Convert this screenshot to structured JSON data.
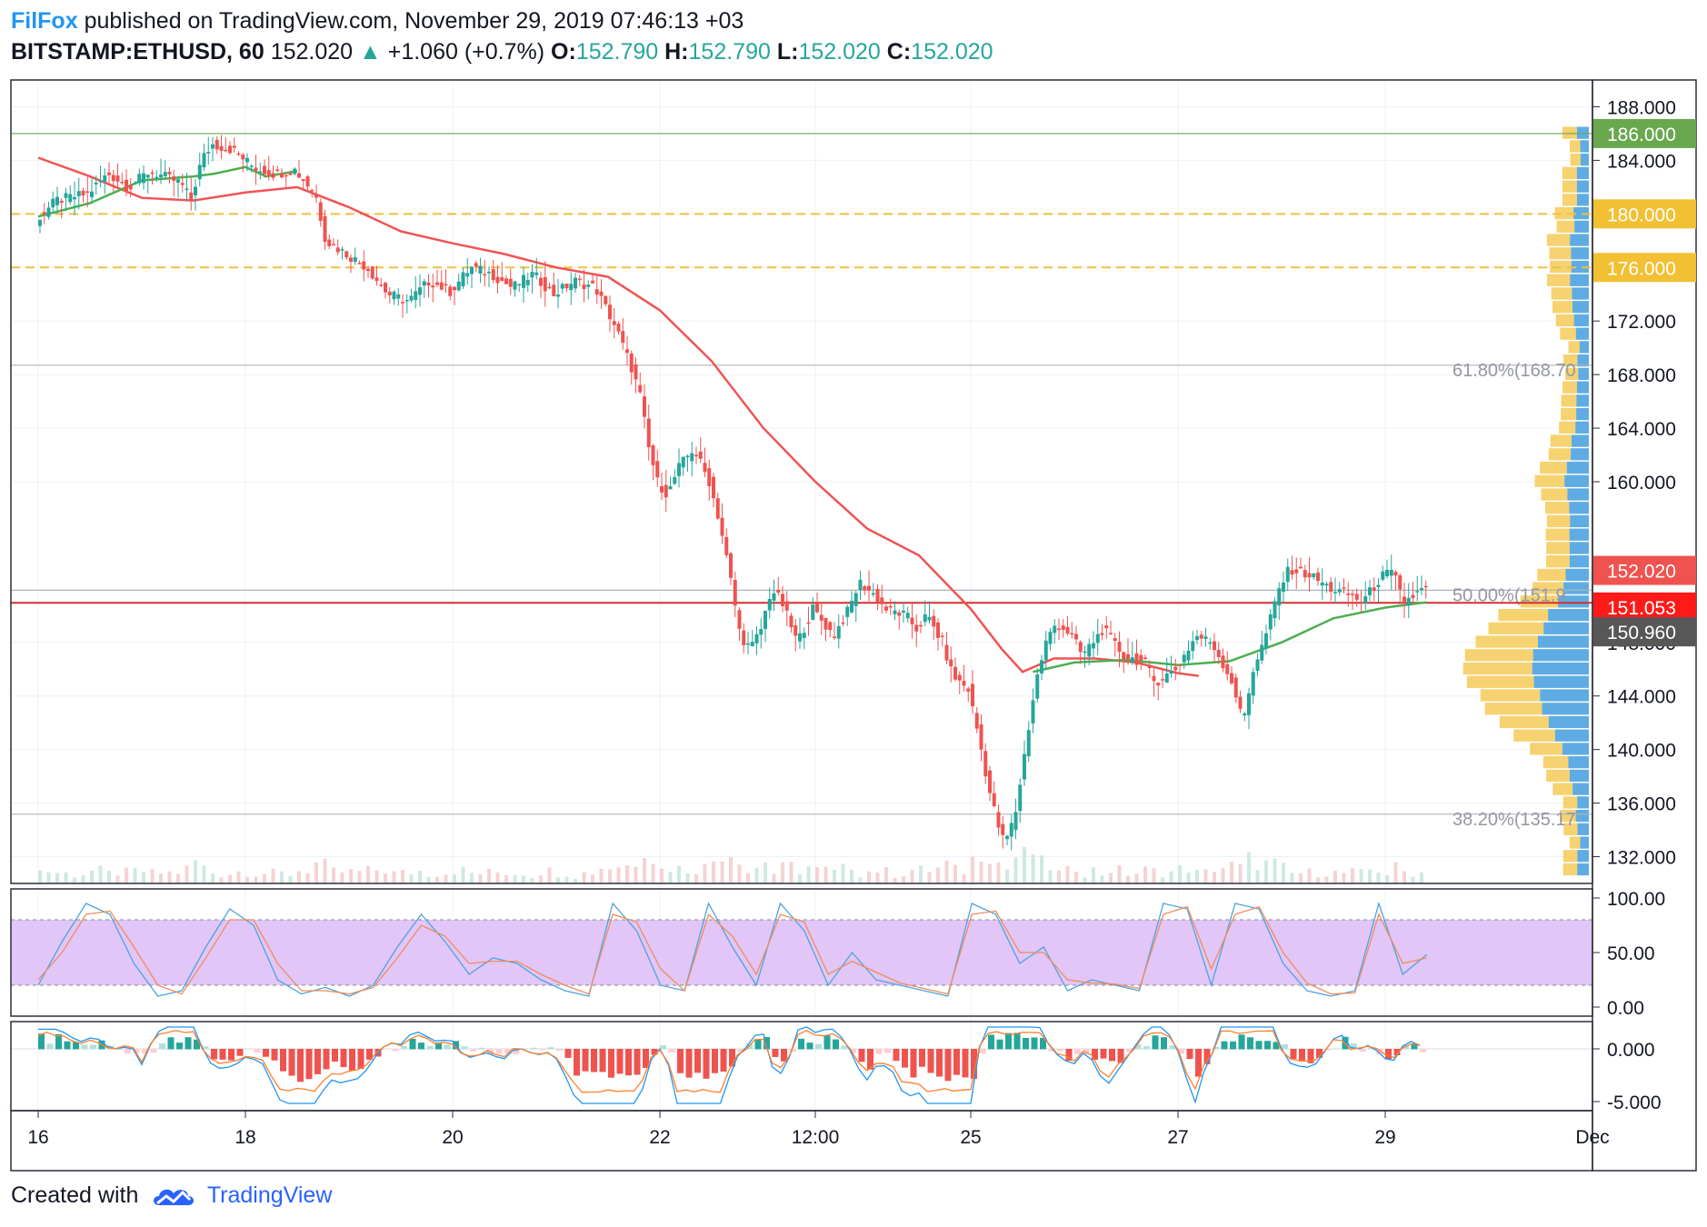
{
  "header": {
    "author": "FilFox",
    "published_text": "published on TradingView.com, November 29, 2019 07:46:13 +03",
    "symbol": "BITSTAMP:ETHUSD, 60",
    "last": "152.020",
    "change_arrow": "▲",
    "change": "+1.060 (+0.7%)",
    "o_label": "O:",
    "o": "152.790",
    "h_label": "H:",
    "h": "152.790",
    "l_label": "L:",
    "l": "152.020",
    "c_label": "C:",
    "c": "152.020"
  },
  "footer": {
    "created_with": "Created with",
    "brand": "TradingView",
    "brand_icon": "tradingview-cloud-icon"
  },
  "colors": {
    "up": "#26a69a",
    "down": "#ef5350",
    "ma_red": "#f05454",
    "ma_green": "#4caf50",
    "level_yellow": "#f0c040",
    "level_green": "#6aa84f",
    "stoch_band": "#e1c6f7",
    "volume_profile_up": "#4da3e0",
    "volume_profile_down": "#f5cd60"
  },
  "chart_data": {
    "type": "candlestick",
    "price_axis": {
      "ylim": [
        130,
        190
      ],
      "ticks": [
        "188.000",
        "184.000",
        "180.000",
        "176.000",
        "172.000",
        "168.000",
        "164.000",
        "160.000",
        "148.000",
        "144.000",
        "140.000",
        "136.000",
        "132.000"
      ],
      "tick_values": [
        188,
        184,
        180,
        176,
        172,
        168,
        164,
        160,
        148,
        144,
        140,
        136,
        132
      ]
    },
    "time_axis": {
      "labels": [
        "16",
        "18",
        "20",
        "22",
        "12:00",
        "25",
        "27",
        "29",
        "Dec"
      ],
      "label_index": [
        0,
        2,
        4,
        6,
        7.5,
        9,
        11,
        13,
        15
      ]
    },
    "price_path": [
      [
        0,
        179.5
      ],
      [
        0.2,
        181.0
      ],
      [
        0.5,
        181.5
      ],
      [
        0.7,
        183.0
      ],
      [
        0.9,
        182.0
      ],
      [
        1.1,
        183.2
      ],
      [
        1.4,
        182.3
      ],
      [
        1.5,
        181.0
      ],
      [
        1.6,
        184.0
      ],
      [
        1.7,
        185.2
      ],
      [
        1.9,
        184.8
      ],
      [
        2.1,
        183.5
      ],
      [
        2.3,
        183.0
      ],
      [
        2.5,
        183.3
      ],
      [
        2.7,
        181.5
      ],
      [
        2.8,
        178.0
      ],
      [
        3.0,
        177.0
      ],
      [
        3.2,
        176.0
      ],
      [
        3.4,
        174.0
      ],
      [
        3.6,
        173.5
      ],
      [
        3.8,
        175.0
      ],
      [
        4.0,
        174.2
      ],
      [
        4.2,
        176.0
      ],
      [
        4.4,
        175.5
      ],
      [
        4.6,
        174.5
      ],
      [
        4.8,
        175.5
      ],
      [
        5.0,
        174.0
      ],
      [
        5.2,
        175.0
      ],
      [
        5.4,
        174.5
      ],
      [
        5.6,
        171.5
      ],
      [
        5.75,
        168.5
      ],
      [
        5.85,
        166.0
      ],
      [
        5.9,
        163.0
      ],
      [
        6.0,
        160.0
      ],
      [
        6.1,
        159.0
      ],
      [
        6.2,
        161.0
      ],
      [
        6.35,
        162.5
      ],
      [
        6.5,
        160.0
      ],
      [
        6.6,
        157.0
      ],
      [
        6.7,
        153.0
      ],
      [
        6.8,
        148.5
      ],
      [
        6.9,
        147.5
      ],
      [
        7.0,
        149.0
      ],
      [
        7.1,
        152.0
      ],
      [
        7.2,
        151.0
      ],
      [
        7.35,
        148.0
      ],
      [
        7.5,
        150.5
      ],
      [
        7.6,
        149.5
      ],
      [
        7.7,
        148.5
      ],
      [
        7.85,
        150.5
      ],
      [
        7.95,
        152.5
      ],
      [
        8.1,
        151.5
      ],
      [
        8.2,
        150.5
      ],
      [
        8.4,
        150.0
      ],
      [
        8.5,
        149.0
      ],
      [
        8.6,
        150.0
      ],
      [
        8.75,
        148.0
      ],
      [
        8.85,
        145.5
      ],
      [
        9.0,
        144.5
      ],
      [
        9.1,
        141.0
      ],
      [
        9.2,
        137.0
      ],
      [
        9.3,
        134.0
      ],
      [
        9.35,
        133.0
      ],
      [
        9.45,
        135.0
      ],
      [
        9.55,
        140.0
      ],
      [
        9.65,
        145.0
      ],
      [
        9.75,
        148.0
      ],
      [
        9.85,
        149.5
      ],
      [
        10.0,
        148.5
      ],
      [
        10.1,
        147.0
      ],
      [
        10.3,
        149.0
      ],
      [
        10.5,
        147.0
      ],
      [
        10.7,
        146.5
      ],
      [
        10.8,
        145.0
      ],
      [
        11.0,
        146.0
      ],
      [
        11.2,
        148.5
      ],
      [
        11.35,
        148.0
      ],
      [
        11.45,
        146.5
      ],
      [
        11.55,
        145.0
      ],
      [
        11.65,
        142.0
      ],
      [
        11.75,
        146.0
      ],
      [
        11.85,
        148.0
      ],
      [
        12.0,
        152.0
      ],
      [
        12.1,
        153.5
      ],
      [
        12.3,
        153.0
      ],
      [
        12.5,
        152.0
      ],
      [
        12.7,
        151.5
      ],
      [
        12.8,
        151.0
      ],
      [
        13.0,
        153.0
      ],
      [
        13.1,
        153.2
      ],
      [
        13.2,
        151.0
      ],
      [
        13.3,
        151.5
      ],
      [
        13.4,
        152.0
      ]
    ],
    "ma_red": [
      [
        0,
        184.2
      ],
      [
        0.5,
        182.8
      ],
      [
        1.0,
        181.2
      ],
      [
        1.5,
        181.0
      ],
      [
        2.0,
        181.6
      ],
      [
        2.5,
        182.0
      ],
      [
        3.0,
        180.5
      ],
      [
        3.5,
        178.7
      ],
      [
        4.0,
        177.8
      ],
      [
        4.5,
        177.0
      ],
      [
        5.0,
        176.0
      ],
      [
        5.5,
        175.3
      ],
      [
        6.0,
        172.8
      ],
      [
        6.5,
        169.0
      ],
      [
        7.0,
        164.0
      ],
      [
        7.5,
        160.0
      ],
      [
        8.0,
        156.5
      ],
      [
        8.5,
        154.5
      ],
      [
        9.0,
        150.5
      ],
      [
        9.3,
        147.5
      ],
      [
        9.5,
        145.8
      ],
      [
        9.8,
        146.8
      ],
      [
        10.2,
        146.8
      ],
      [
        10.6,
        146.5
      ],
      [
        11.0,
        145.7
      ],
      [
        11.2,
        145.5
      ]
    ],
    "ma_green": [
      [
        0,
        179.8
      ],
      [
        0.5,
        180.8
      ],
      [
        1.0,
        182.5
      ],
      [
        1.5,
        182.8
      ],
      [
        1.7,
        183.0
      ],
      [
        2.0,
        183.5
      ],
      [
        2.2,
        182.8
      ],
      [
        2.5,
        183.2
      ],
      [
        9.6,
        145.8
      ],
      [
        10.0,
        146.5
      ],
      [
        10.5,
        146.7
      ],
      [
        11.0,
        146.3
      ],
      [
        11.5,
        146.6
      ],
      [
        12.0,
        148.0
      ],
      [
        12.5,
        149.8
      ],
      [
        13.0,
        150.6
      ],
      [
        13.4,
        151.0
      ]
    ],
    "levels": [
      {
        "value": 186.0,
        "label": "186.000",
        "style": "solid-green"
      },
      {
        "value": 180.0,
        "label": "180.000",
        "style": "dashed-yellow"
      },
      {
        "value": 176.0,
        "label": "176.000",
        "style": "dashed-yellow"
      },
      {
        "value": 168.7,
        "label": "61.80%(168.70",
        "style": "fib"
      },
      {
        "value": 151.9,
        "label": "50.00%(151.9",
        "style": "fib"
      },
      {
        "value": 135.17,
        "label": "38.20%(135.17",
        "style": "fib"
      },
      {
        "value": 150.96,
        "label": "150.960",
        "style": "solid-red"
      }
    ],
    "price_badges": [
      {
        "value": 152.02,
        "label": "152.020",
        "color": "#ef5350"
      },
      {
        "value": 151.053,
        "label": "151.053",
        "color": "#ff1a1a"
      },
      {
        "value": 150.96,
        "label": "150.960",
        "color": "#575757"
      },
      {
        "value": 186.0,
        "label": "186.000",
        "color": "#6aa84f"
      },
      {
        "value": 180.0,
        "label": "180.000",
        "color": "#f2c033"
      },
      {
        "value": 176.0,
        "label": "176.000",
        "color": "#f2c033"
      }
    ],
    "stochastic": {
      "ticks": [
        "100.00",
        "50.00",
        "0.00"
      ],
      "tick_values": [
        100,
        50,
        0
      ],
      "band": [
        20,
        80
      ],
      "k": [
        20,
        60,
        95,
        85,
        40,
        10,
        15,
        55,
        90,
        75,
        25,
        12,
        18,
        10,
        20,
        55,
        85,
        60,
        30,
        45,
        40,
        25,
        15,
        10,
        95,
        70,
        20,
        15,
        95,
        55,
        20,
        95,
        70,
        20,
        50,
        25,
        20,
        15,
        10,
        95,
        85,
        40,
        55,
        15,
        25,
        20,
        15,
        95,
        90,
        20,
        95,
        90,
        40,
        15,
        10,
        15,
        95,
        30,
        48
      ],
      "d": [
        25,
        50,
        85,
        88,
        55,
        20,
        12,
        45,
        80,
        80,
        40,
        15,
        15,
        12,
        18,
        45,
        75,
        65,
        40,
        42,
        42,
        30,
        20,
        12,
        85,
        78,
        35,
        15,
        85,
        65,
        30,
        85,
        78,
        30,
        42,
        32,
        22,
        17,
        12,
        85,
        88,
        50,
        50,
        25,
        22,
        21,
        17,
        85,
        92,
        35,
        85,
        92,
        50,
        22,
        12,
        13,
        85,
        40,
        45
      ]
    },
    "macd": {
      "ticks": [
        "0.000",
        "-5.000"
      ],
      "tick_values": [
        0,
        -5
      ]
    }
  }
}
